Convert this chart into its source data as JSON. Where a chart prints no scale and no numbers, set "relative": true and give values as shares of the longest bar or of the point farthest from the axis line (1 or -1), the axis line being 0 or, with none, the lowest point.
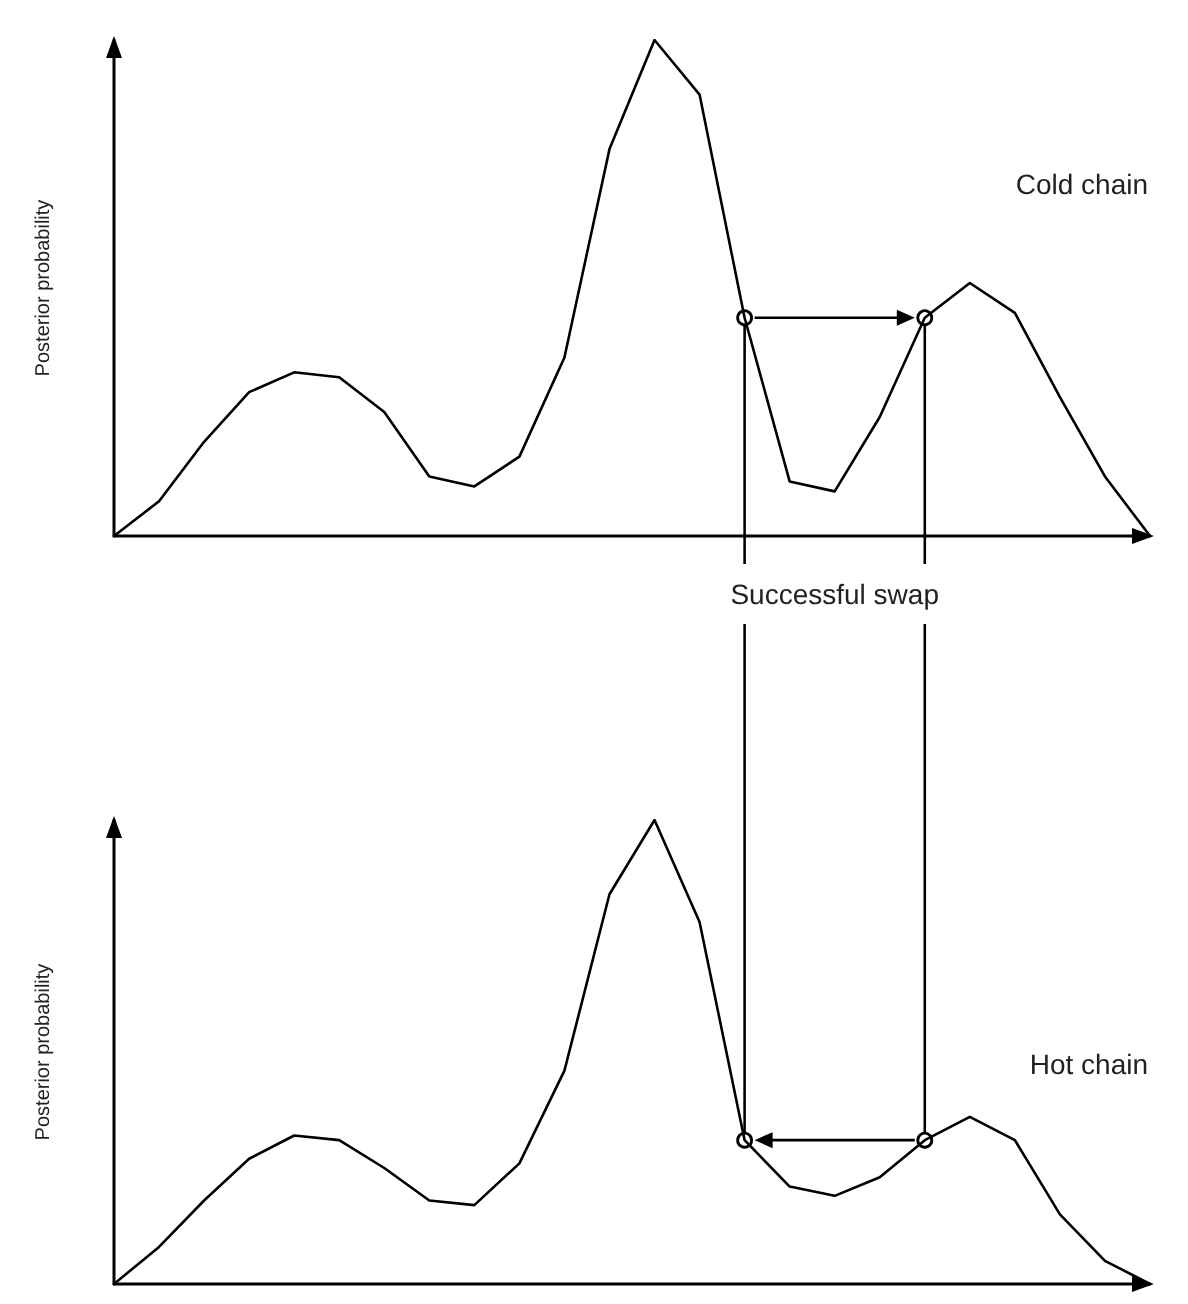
{
  "chart_data": [
    {
      "type": "line",
      "ylabel": "Posterior probability",
      "relative": true,
      "marker": "none",
      "line_style": "solid",
      "annotations": [
        "Cold chain",
        "Successful swap"
      ],
      "categories": [
        null,
        null,
        null,
        null,
        null,
        null,
        null,
        null,
        null,
        null,
        null,
        null,
        null,
        null,
        null,
        null,
        null,
        null,
        null,
        null,
        null,
        null,
        null,
        null
      ],
      "series": [
        {
          "color": "#000000",
          "values": [
            0,
            0.07,
            0.19,
            0.29,
            0.33,
            0.32,
            0.25,
            0.12,
            0.1,
            0.16,
            0.36,
            0.78,
            1,
            0.89,
            0.44,
            0.11,
            0.09,
            0.24,
            0.44,
            0.51,
            0.45,
            0.28,
            0.12,
            0
          ]
        }
      ]
    },
    {
      "type": "line",
      "ylabel": "Posterior probability",
      "relative": true,
      "marker": "none",
      "line_style": "solid",
      "annotations": [
        "Hot chain"
      ],
      "categories": [
        null,
        null,
        null,
        null,
        null,
        null,
        null,
        null,
        null,
        null,
        null,
        null,
        null,
        null,
        null,
        null,
        null,
        null,
        null,
        null,
        null,
        null,
        null,
        null
      ],
      "series": [
        {
          "color": "#000000",
          "values": [
            0,
            0.08,
            0.18,
            0.27,
            0.32,
            0.31,
            0.25,
            0.18,
            0.17,
            0.26,
            0.46,
            0.84,
            1,
            0.78,
            0.31,
            0.21,
            0.19,
            0.23,
            0.31,
            0.36,
            0.31,
            0.15,
            0.05,
            0
          ]
        }
      ]
    }
  ]
}
